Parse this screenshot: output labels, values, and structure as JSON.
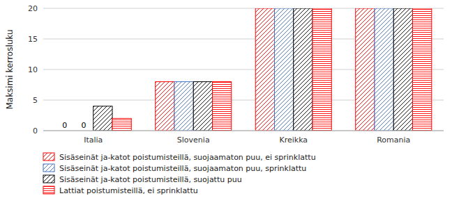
{
  "chart_data": {
    "type": "bar",
    "ylabel": "Maksimi kerrosluku",
    "categories": [
      "Italia",
      "Slovenia",
      "Kreikka",
      "Romania"
    ],
    "series": [
      {
        "name": "Sisäseinät ja-katot poistumisteillä, suojaamaton puu, ei sprinklattu",
        "color": "#FF0000",
        "marker": "diagonal",
        "values": [
          0,
          8,
          20,
          20
        ]
      },
      {
        "name": "Sisäseinät ja-katot poistumisteillä, suojaamaton puu, sprinklattu",
        "color": "#4472C4",
        "marker": "diagonal",
        "values": [
          0,
          8,
          20,
          20
        ]
      },
      {
        "name": "Sisäseinät ja-katot poistumisteillä, suojattu puu",
        "color": "#000000",
        "marker": "diagonal",
        "values": [
          4,
          8,
          20,
          20
        ]
      },
      {
        "name": "Lattiat poistumisteillä, ei sprinklattu",
        "color": "#FF0000",
        "marker": "horizontal",
        "values": [
          2,
          8,
          20,
          20
        ]
      }
    ],
    "annotations": [
      {
        "text": "0",
        "category": "Italia",
        "series": "Sisäseinät ja-katot poistumisteillä, suojaamaton puu, ei sprinklattu"
      },
      {
        "text": "0",
        "category": "Italia",
        "series": "Sisäseinät ja-katot poistumisteillä, suojaamaton puu, sprinklattu"
      }
    ],
    "ylim": [
      0,
      20
    ],
    "yticks": [
      0,
      5,
      10,
      15,
      20
    ],
    "grid": true,
    "legend": "bottom"
  }
}
